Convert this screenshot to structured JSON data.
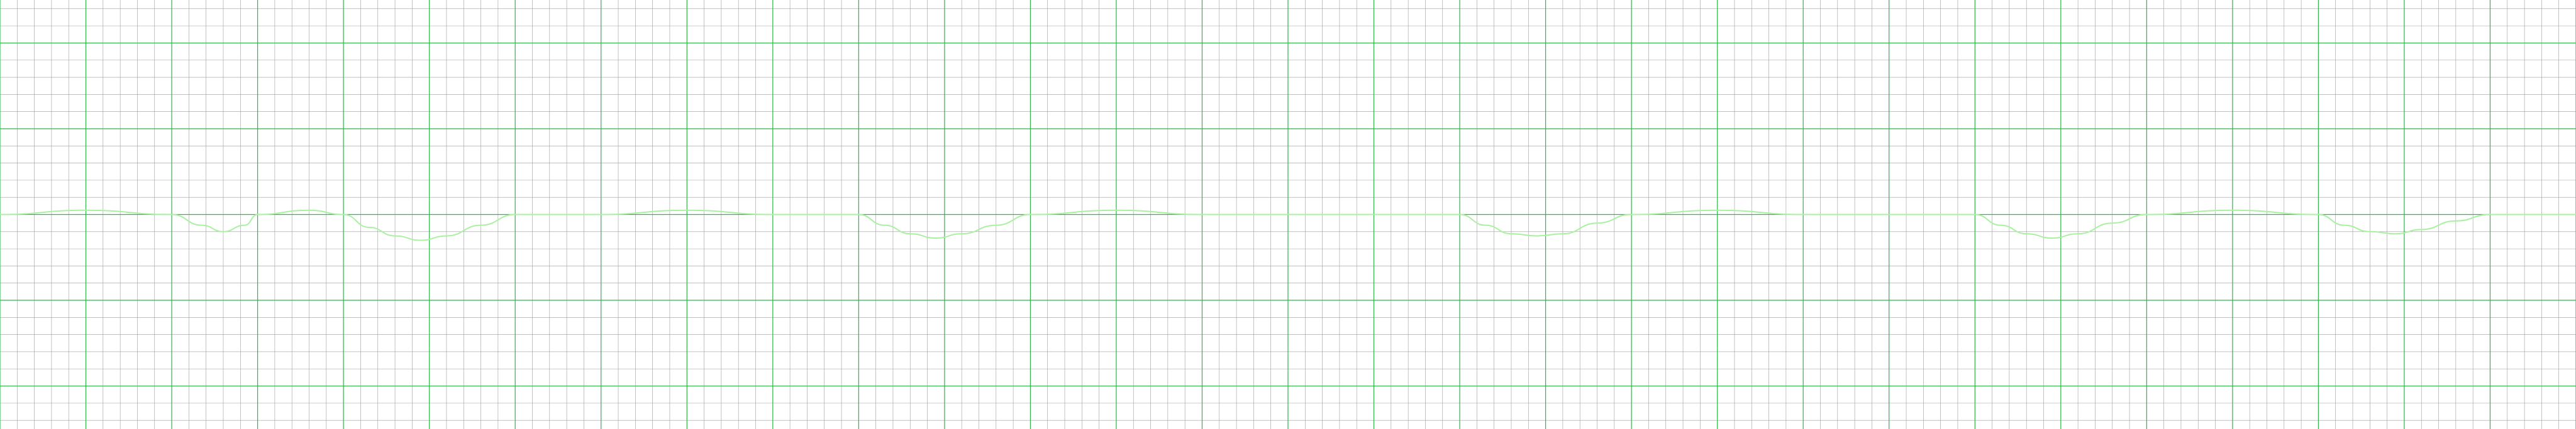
{
  "chart_data": {
    "type": "line",
    "title": "",
    "xlabel": "",
    "ylabel": "",
    "grid": true,
    "colors": {
      "background": "#ffffff",
      "grid_major": "#2fb34a",
      "grid_minor": "#9b9b9b",
      "trace": "#a9f0a0"
    },
    "xlim": [
      0,
      30
    ],
    "ylim": [
      -1,
      1
    ],
    "grid_minor_step_seconds": 0.2,
    "grid_major_step_seconds": 1.0,
    "series": [
      {
        "name": "",
        "x": [
          0.0,
          1.0,
          2.0,
          2.35,
          2.6,
          2.85,
          3.0,
          3.6,
          4.0,
          4.3,
          4.6,
          4.9,
          5.2,
          5.6,
          6.0,
          7.0,
          8.0,
          9.0,
          9.8,
          10.0,
          10.3,
          10.6,
          10.9,
          11.2,
          11.6,
          12.0,
          13.0,
          14.0,
          15.0,
          16.0,
          17.0,
          17.3,
          17.6,
          17.9,
          18.2,
          18.6,
          19.0,
          20.0,
          21.0,
          22.0,
          23.0,
          23.3,
          23.6,
          23.9,
          24.2,
          24.6,
          25.0,
          26.0,
          27.0,
          27.3,
          27.6,
          27.9,
          28.2,
          28.6,
          29.0,
          30.0
        ],
        "y": [
          0.0,
          0.02,
          0.0,
          -0.05,
          -0.08,
          -0.05,
          0.0,
          0.02,
          0.0,
          -0.06,
          -0.1,
          -0.12,
          -0.1,
          -0.05,
          0.0,
          0.0,
          0.02,
          0.0,
          0.0,
          0.0,
          -0.05,
          -0.09,
          -0.11,
          -0.09,
          -0.05,
          0.0,
          0.02,
          0.0,
          0.0,
          0.0,
          0.0,
          -0.05,
          -0.09,
          -0.1,
          -0.09,
          -0.04,
          0.0,
          0.02,
          0.0,
          0.0,
          0.0,
          -0.05,
          -0.09,
          -0.11,
          -0.09,
          -0.04,
          0.0,
          0.02,
          0.0,
          -0.05,
          -0.08,
          -0.09,
          -0.07,
          -0.03,
          0.0,
          0.0
        ]
      }
    ]
  }
}
